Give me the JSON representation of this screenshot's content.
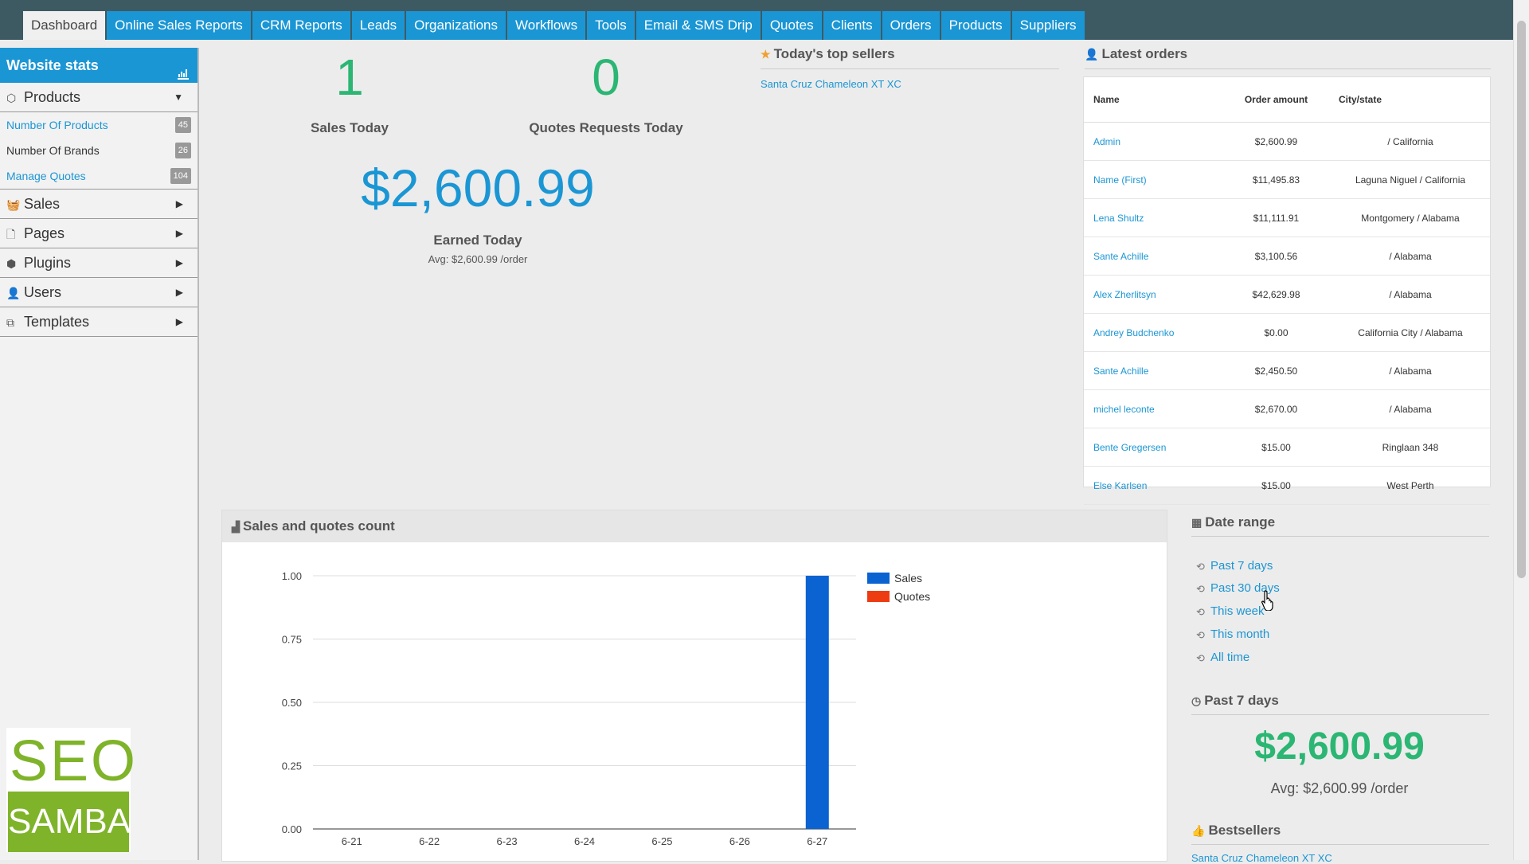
{
  "nav": {
    "tabs": [
      "Dashboard",
      "Online Sales Reports",
      "CRM Reports",
      "Leads",
      "Organizations",
      "Workflows",
      "Tools",
      "Email & SMS Drip",
      "Quotes",
      "Clients",
      "Orders",
      "Products",
      "Suppliers"
    ],
    "active": "Dashboard"
  },
  "sidebar": {
    "title": "Website stats",
    "products_label": "Products",
    "items": [
      {
        "label": "Number Of Products",
        "count": "45"
      },
      {
        "label": "Number Of Brands",
        "count": "26"
      },
      {
        "label": "Manage Quotes",
        "count": "104"
      }
    ],
    "sections": [
      "Sales",
      "Pages",
      "Plugins",
      "Users",
      "Templates"
    ],
    "logo": {
      "seo": "SEO",
      "samba": "SAMBA"
    }
  },
  "stats": {
    "sales_today": "1",
    "sales_today_label": "Sales Today",
    "quotes_today": "0",
    "quotes_today_label": "Quotes Requests Today",
    "earned": "$2,600.99",
    "earned_label": "Earned Today",
    "earned_avg": "Avg: $2,600.99 /order"
  },
  "top_sellers": {
    "title": "Today's top sellers",
    "items": [
      "Santa Cruz Chameleon XT XC"
    ]
  },
  "latest_orders": {
    "title": "Latest orders",
    "headers": {
      "name": "Name",
      "amount": "Order amount",
      "city": "City/state"
    },
    "rows": [
      {
        "name": "Admin",
        "amount": "$2,600.99",
        "city": " / California"
      },
      {
        "name": "Name (First)",
        "amount": "$11,495.83",
        "city": "Laguna Niguel / California"
      },
      {
        "name": "Lena Shultz",
        "amount": "$11,111.91",
        "city": "Montgomery / Alabama"
      },
      {
        "name": "Sante Achille",
        "amount": "$3,100.56",
        "city": " / Alabama"
      },
      {
        "name": "Alex Zherlitsyn",
        "amount": "$42,629.98",
        "city": " / Alabama"
      },
      {
        "name": "Andrey Budchenko",
        "amount": "$0.00",
        "city": "California City / Alabama"
      },
      {
        "name": "Sante Achille",
        "amount": "$2,450.50",
        "city": " / Alabama"
      },
      {
        "name": "michel leconte",
        "amount": "$2,670.00",
        "city": " / Alabama"
      },
      {
        "name": "Bente Gregersen",
        "amount": "$15.00",
        "city": "Ringlaan 348"
      },
      {
        "name": "Else Karlsen",
        "amount": "$15.00",
        "city": "West Perth"
      }
    ]
  },
  "chart_panel": {
    "title": "Sales and quotes count"
  },
  "chart_data": {
    "type": "bar",
    "categories": [
      "6-21",
      "6-22",
      "6-23",
      "6-24",
      "6-25",
      "6-26",
      "6-27"
    ],
    "series": [
      {
        "name": "Sales",
        "values": [
          0,
          0,
          0,
          0,
          0,
          0,
          1
        ],
        "color": "#0b62d1"
      },
      {
        "name": "Quotes",
        "values": [
          0,
          0,
          0,
          0,
          0,
          0,
          0
        ],
        "color": "#ee3c12"
      }
    ],
    "yticks": [
      "0.00",
      "0.25",
      "0.50",
      "0.75",
      "1.00"
    ],
    "ylim": [
      0,
      1
    ],
    "legend": "top-right",
    "grid": true
  },
  "date_range": {
    "title": "Date range",
    "links": [
      "Past 7 days",
      "Past 30 days",
      "This week",
      "This month",
      "All time"
    ]
  },
  "past7": {
    "title": "Past 7 days",
    "value": "$2,600.99",
    "avg": "Avg: $2,600.99 /order"
  },
  "bestsellers": {
    "title": "Bestsellers",
    "items": [
      "Santa Cruz Chameleon XT XC"
    ]
  },
  "colors": {
    "accent": "#1b96d4",
    "green": "#2bb673",
    "nav": "#3d5a63"
  }
}
